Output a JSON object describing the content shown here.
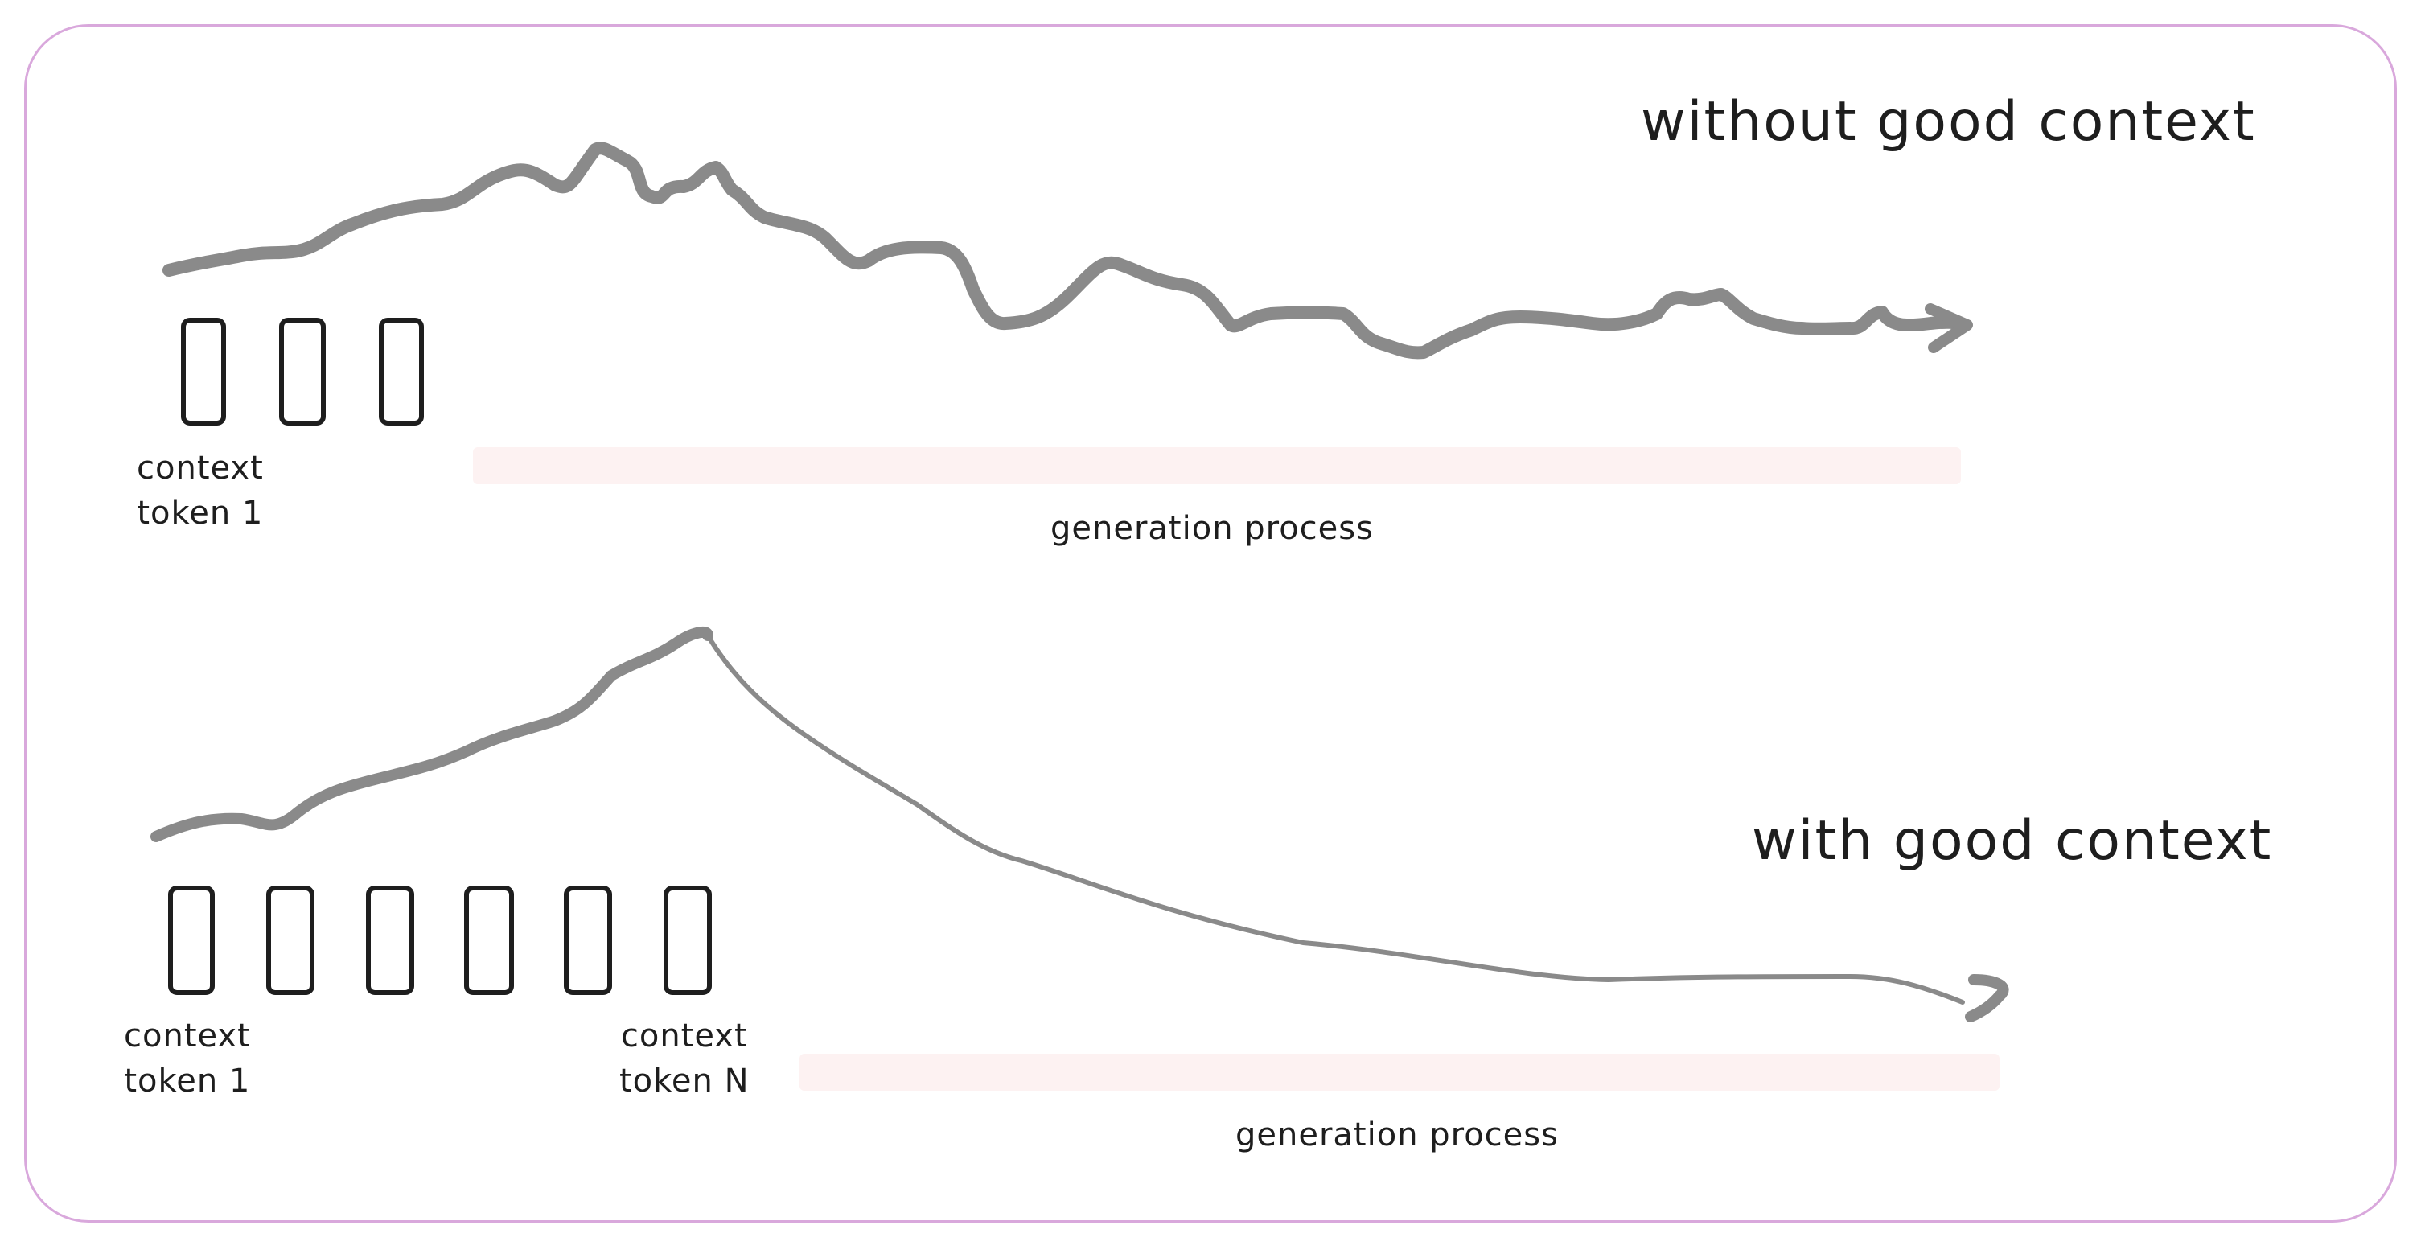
{
  "top_panel": {
    "title": "without good context",
    "token_label_line1": "context",
    "token_label_line2": "token 1",
    "generation_label": "generation process"
  },
  "bottom_panel": {
    "title": "with good context",
    "first_token_label_line1": "context",
    "first_token_label_line2": "token 1",
    "last_token_label_line1": "context",
    "last_token_label_line2": "token N",
    "generation_label": "generation process"
  },
  "colors": {
    "frame": "#d9a8dc",
    "curve": "#8a8a8a",
    "token_box": "#1e1e1e",
    "generation_bar": "#fdf2f2",
    "text": "#1e1e1e"
  }
}
